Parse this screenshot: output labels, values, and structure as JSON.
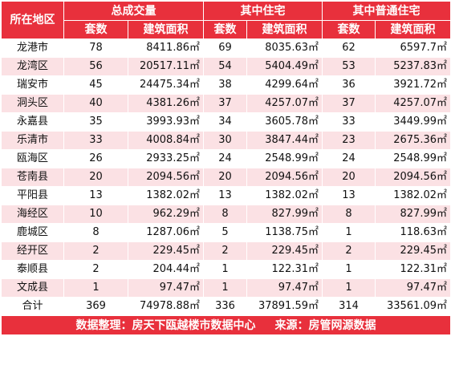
{
  "header": {
    "region_label": "所在地区",
    "group_total": "总成交量",
    "group_residential": "其中住宅",
    "group_ordinary": "其中普通住宅",
    "col_units": "套数",
    "col_area": "建筑面积"
  },
  "rows": [
    {
      "region": "龙港市",
      "t_units": "78",
      "t_area": "8411.86㎡",
      "r_units": "69",
      "r_area": "8035.63㎡",
      "o_units": "62",
      "o_area": "6597.7㎡"
    },
    {
      "region": "龙湾区",
      "t_units": "56",
      "t_area": "20517.11㎡",
      "r_units": "54",
      "r_area": "5404.49㎡",
      "o_units": "53",
      "o_area": "5237.83㎡"
    },
    {
      "region": "瑞安市",
      "t_units": "45",
      "t_area": "24475.34㎡",
      "r_units": "38",
      "r_area": "4299.64㎡",
      "o_units": "36",
      "o_area": "3921.72㎡"
    },
    {
      "region": "洞头区",
      "t_units": "40",
      "t_area": "4381.26㎡",
      "r_units": "37",
      "r_area": "4257.07㎡",
      "o_units": "37",
      "o_area": "4257.07㎡"
    },
    {
      "region": "永嘉县",
      "t_units": "35",
      "t_area": "3993.93㎡",
      "r_units": "34",
      "r_area": "3605.78㎡",
      "o_units": "33",
      "o_area": "3449.99㎡"
    },
    {
      "region": "乐清市",
      "t_units": "33",
      "t_area": "4008.84㎡",
      "r_units": "30",
      "r_area": "3847.44㎡",
      "o_units": "23",
      "o_area": "2675.36㎡"
    },
    {
      "region": "瓯海区",
      "t_units": "26",
      "t_area": "2933.25㎡",
      "r_units": "24",
      "r_area": "2548.99㎡",
      "o_units": "24",
      "o_area": "2548.99㎡"
    },
    {
      "region": "苍南县",
      "t_units": "20",
      "t_area": "2094.56㎡",
      "r_units": "20",
      "r_area": "2094.56㎡",
      "o_units": "20",
      "o_area": "2094.56㎡"
    },
    {
      "region": "平阳县",
      "t_units": "13",
      "t_area": "1382.02㎡",
      "r_units": "13",
      "r_area": "1382.02㎡",
      "o_units": "13",
      "o_area": "1382.02㎡"
    },
    {
      "region": "海经区",
      "t_units": "10",
      "t_area": "962.29㎡",
      "r_units": "8",
      "r_area": "827.99㎡",
      "o_units": "8",
      "o_area": "827.99㎡"
    },
    {
      "region": "鹿城区",
      "t_units": "8",
      "t_area": "1287.06㎡",
      "r_units": "5",
      "r_area": "1138.75㎡",
      "o_units": "1",
      "o_area": "118.63㎡"
    },
    {
      "region": "经开区",
      "t_units": "2",
      "t_area": "229.45㎡",
      "r_units": "2",
      "r_area": "229.45㎡",
      "o_units": "2",
      "o_area": "229.45㎡"
    },
    {
      "region": "泰顺县",
      "t_units": "2",
      "t_area": "204.44㎡",
      "r_units": "1",
      "r_area": "122.31㎡",
      "o_units": "1",
      "o_area": "122.31㎡"
    },
    {
      "region": "文成县",
      "t_units": "1",
      "t_area": "97.47㎡",
      "r_units": "1",
      "r_area": "97.47㎡",
      "o_units": "1",
      "o_area": "97.47㎡"
    }
  ],
  "total": {
    "region": "合计",
    "t_units": "369",
    "t_area": "74978.88㎡",
    "r_units": "336",
    "r_area": "37891.59㎡",
    "o_units": "314",
    "o_area": "33561.09㎡"
  },
  "footer": {
    "compiled": "数据整理：房天下瓯越楼市数据中心",
    "source": "来源：房管网源数据"
  },
  "colors": {
    "header_bg": "#e8303c",
    "stripe": "#fbe1e4"
  }
}
